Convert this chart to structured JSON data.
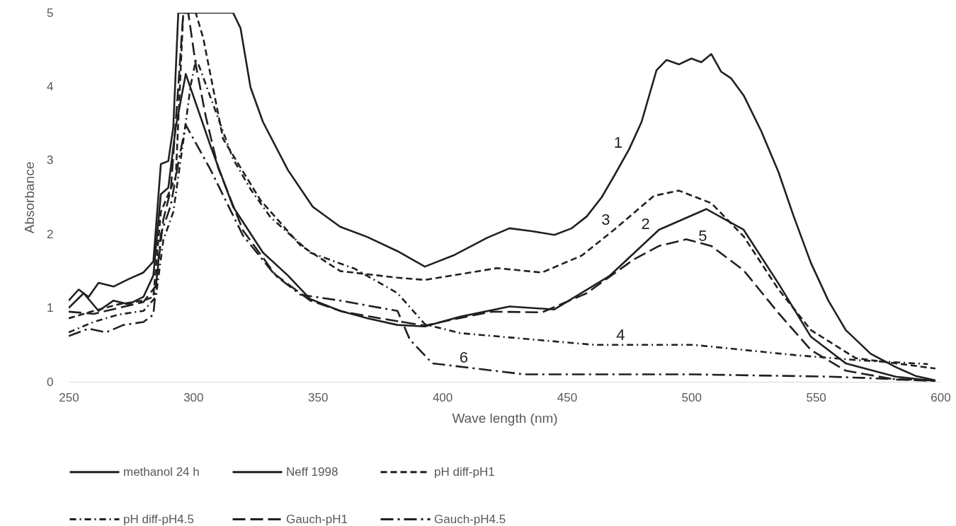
{
  "chart_data": {
    "type": "line",
    "xlabel": "Wave length (nm)",
    "ylabel": "Absorbance",
    "xlim": [
      250,
      600
    ],
    "xticks": [
      250,
      300,
      350,
      400,
      450,
      500,
      550,
      600
    ],
    "ylim": [
      0,
      5
    ],
    "yticks": [
      0,
      1,
      2,
      3,
      4,
      5
    ],
    "legend": "bottom",
    "annotations": [
      {
        "text": "1",
        "x": 474,
        "y": 3.1
      },
      {
        "text": "2",
        "x": 485,
        "y": 2.0
      },
      {
        "text": "3",
        "x": 469,
        "y": 2.06
      },
      {
        "text": "4",
        "x": 475,
        "y": 0.5
      },
      {
        "text": "5",
        "x": 508,
        "y": 1.84
      },
      {
        "text": "6",
        "x": 412,
        "y": 0.19
      }
    ],
    "series": [
      {
        "name": "methanol 24 h",
        "color": "#231f20",
        "line_style": "solid",
        "x": [
          250,
          254,
          258,
          262,
          268,
          274,
          280,
          284,
          287,
          290,
          292,
          294,
          300,
          310,
          316,
          319,
          323,
          328,
          338,
          348,
          359,
          370,
          382,
          393,
          405,
          418,
          427,
          436,
          445,
          452,
          458,
          464,
          469,
          475,
          480,
          486,
          490,
          495,
          500,
          504,
          508,
          512,
          516,
          521,
          528,
          535,
          541,
          548,
          555,
          562,
          572,
          582,
          590,
          598
        ],
        "values": [
          1.1,
          1.25,
          1.15,
          1.34,
          1.29,
          1.39,
          1.48,
          1.63,
          2.95,
          2.99,
          3.45,
          5,
          5,
          5,
          5,
          4.79,
          3.99,
          3.52,
          2.87,
          2.37,
          2.1,
          1.96,
          1.77,
          1.56,
          1.72,
          1.95,
          2.08,
          2.04,
          1.99,
          2.08,
          2.24,
          2.5,
          2.79,
          3.15,
          3.52,
          4.22,
          4.36,
          4.3,
          4.38,
          4.33,
          4.44,
          4.2,
          4.11,
          3.88,
          3.4,
          2.84,
          2.25,
          1.61,
          1.1,
          0.7,
          0.38,
          0.2,
          0.08,
          0.02
        ]
      },
      {
        "name": "Neff 1998",
        "color": "#231f20",
        "line_style": "solid",
        "x": [
          250,
          256,
          262,
          268,
          274,
          280,
          284,
          287,
          290,
          293,
          297,
          307,
          316,
          328,
          338,
          347,
          359,
          370,
          382,
          393,
          407,
          427,
          445,
          467,
          487,
          506,
          521,
          535,
          548,
          562,
          582,
          598
        ],
        "values": [
          1.0,
          1.2,
          0.96,
          1.1,
          1.05,
          1.15,
          1.44,
          2.54,
          2.63,
          3.45,
          4.17,
          3.19,
          2.37,
          1.75,
          1.44,
          1.12,
          0.96,
          0.86,
          0.77,
          0.75,
          0.88,
          1.02,
          0.98,
          1.43,
          2.06,
          2.34,
          2.06,
          1.33,
          0.61,
          0.25,
          0.07,
          0.01
        ]
      },
      {
        "name": "pH diff-pH1",
        "color": "#231f20",
        "line_style": "dashed",
        "x": [
          250,
          260,
          270,
          280,
          284,
          287,
          290,
          293,
          296,
          301,
          304,
          312,
          327,
          343,
          359,
          382,
          393,
          422,
          440,
          456,
          469,
          485,
          495,
          508,
          521,
          535,
          548,
          566,
          598
        ],
        "values": [
          0.86,
          0.96,
          1.05,
          1.1,
          1.15,
          2.3,
          2.54,
          2.78,
          5,
          5,
          4.66,
          3.29,
          2.46,
          1.85,
          1.5,
          1.41,
          1.38,
          1.54,
          1.48,
          1.71,
          2.06,
          2.52,
          2.59,
          2.42,
          1.97,
          1.25,
          0.7,
          0.32,
          0.18
        ]
      },
      {
        "name": "pH diff-pH4.5",
        "color": "#231f20",
        "line_style": "dashdot",
        "x": [
          250,
          260,
          270,
          280,
          285,
          288,
          292,
          296,
          299,
          301,
          302,
          316,
          323,
          331,
          347,
          365,
          382,
          393,
          407,
          461,
          501,
          542,
          568,
          595
        ],
        "values": [
          0.67,
          0.81,
          0.91,
          0.96,
          1.15,
          1.92,
          2.3,
          3.26,
          4.02,
          4.35,
          4.31,
          3.02,
          2.61,
          2.23,
          1.75,
          1.53,
          1.2,
          0.78,
          0.66,
          0.5,
          0.5,
          0.36,
          0.29,
          0.24
        ]
      },
      {
        "name": "Gauch-pH1",
        "color": "#231f20",
        "line_style": "longdash",
        "x": [
          250,
          260,
          270,
          280,
          285,
          288,
          291,
          294,
          296,
          298,
          301,
          305,
          310,
          320,
          333,
          347,
          360,
          375,
          393,
          405,
          420,
          440,
          458,
          477,
          487,
          498,
          508,
          521,
          535,
          548,
          562,
          582,
          598
        ],
        "values": [
          0.95,
          0.92,
          1.0,
          1.08,
          1.3,
          2.2,
          2.6,
          4.0,
          5,
          5,
          4.3,
          3.6,
          2.9,
          2.05,
          1.45,
          1.1,
          0.95,
          0.86,
          0.76,
          0.85,
          0.95,
          0.94,
          1.2,
          1.66,
          1.84,
          1.93,
          1.84,
          1.51,
          0.93,
          0.43,
          0.15,
          0.03,
          0.01
        ]
      },
      {
        "name": "Gauch-pH4.5",
        "color": "#231f20",
        "line_style": "longdashdot",
        "x": [
          250,
          258,
          265,
          272,
          280,
          284,
          287,
          291,
          294,
          297,
          307,
          320,
          333,
          343,
          359,
          382,
          387,
          396,
          433,
          501,
          555,
          595
        ],
        "values": [
          0.62,
          0.72,
          0.67,
          0.77,
          0.81,
          0.91,
          2.0,
          2.39,
          2.97,
          3.48,
          2.87,
          1.98,
          1.44,
          1.18,
          1.1,
          0.96,
          0.57,
          0.25,
          0.1,
          0.1,
          0.07,
          0.02
        ]
      }
    ]
  }
}
